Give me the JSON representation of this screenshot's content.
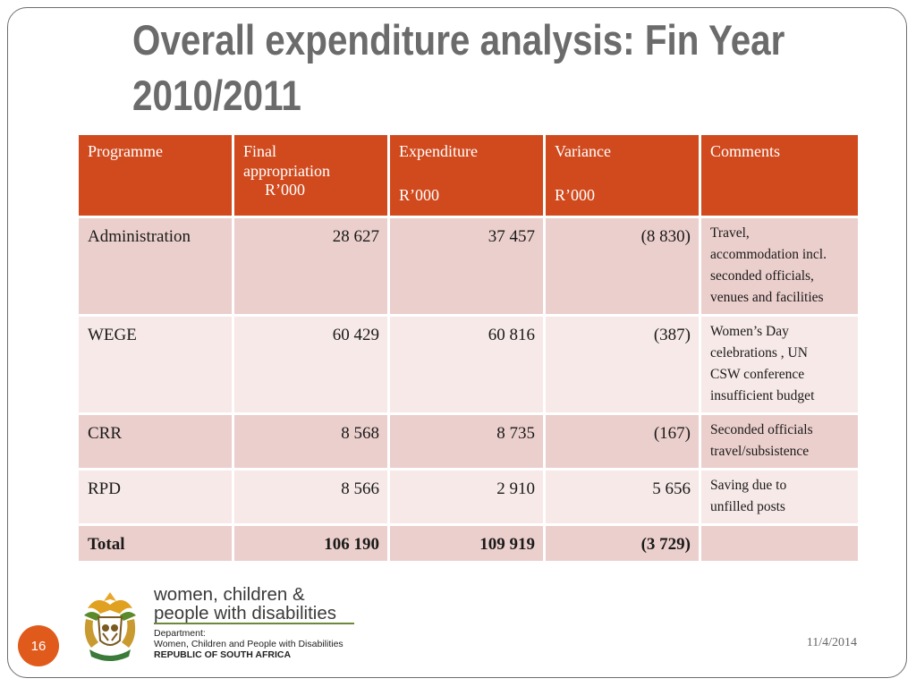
{
  "title": {
    "line1": "Overall expenditure analysis: Fin Year",
    "line2": "2010/2011"
  },
  "table": {
    "headers": {
      "programme": "Programme",
      "final_line1": "Final",
      "final_line2": "appropriation",
      "final_unit": "R’000",
      "expenditure": "Expenditure",
      "expenditure_unit": "R’000",
      "variance": "Variance",
      "variance_unit": "R’000",
      "comments": "Comments"
    },
    "rows": [
      {
        "programme": "Administration",
        "final": "28 627",
        "expenditure": "37 457",
        "variance": "(8 830)",
        "comments": [
          "Travel,",
          "accommodation incl.",
          "seconded officials,",
          "venues and facilities"
        ]
      },
      {
        "programme": "WEGE",
        "final": "60 429",
        "expenditure": "60 816",
        "variance": "(387)",
        "comments": [
          "Women’s Day",
          "celebrations , UN",
          "CSW conference",
          "insufficient budget"
        ]
      },
      {
        "programme": "CRR",
        "final": "8 568",
        "expenditure": "8 735",
        "variance": "(167)",
        "comments": [
          "Seconded officials",
          "travel/subsistence"
        ]
      },
      {
        "programme": "RPD",
        "final": "8 566",
        "expenditure": "2 910",
        "variance": "5 656",
        "comments": [
          "Saving due to",
          "unfilled posts"
        ]
      }
    ],
    "total": {
      "programme": "Total",
      "final": "106 190",
      "expenditure": "109 919",
      "variance": "(3 729)",
      "comments": ""
    }
  },
  "logo": {
    "line1": "women, children &",
    "line2": "people with disabilities",
    "dept_label": "Department:",
    "dept_name": "Women, Children and People with Disabilities",
    "country": "REPUBLIC OF SOUTH AFRICA"
  },
  "footer": {
    "page_number": "16",
    "date": "11/4/2014"
  },
  "colors": {
    "header_bg": "#d04a1e",
    "row_dark": "#ebcfcc",
    "row_light": "#f6e9e7",
    "title": "#6b6b6b",
    "badge": "#e05a1c"
  }
}
